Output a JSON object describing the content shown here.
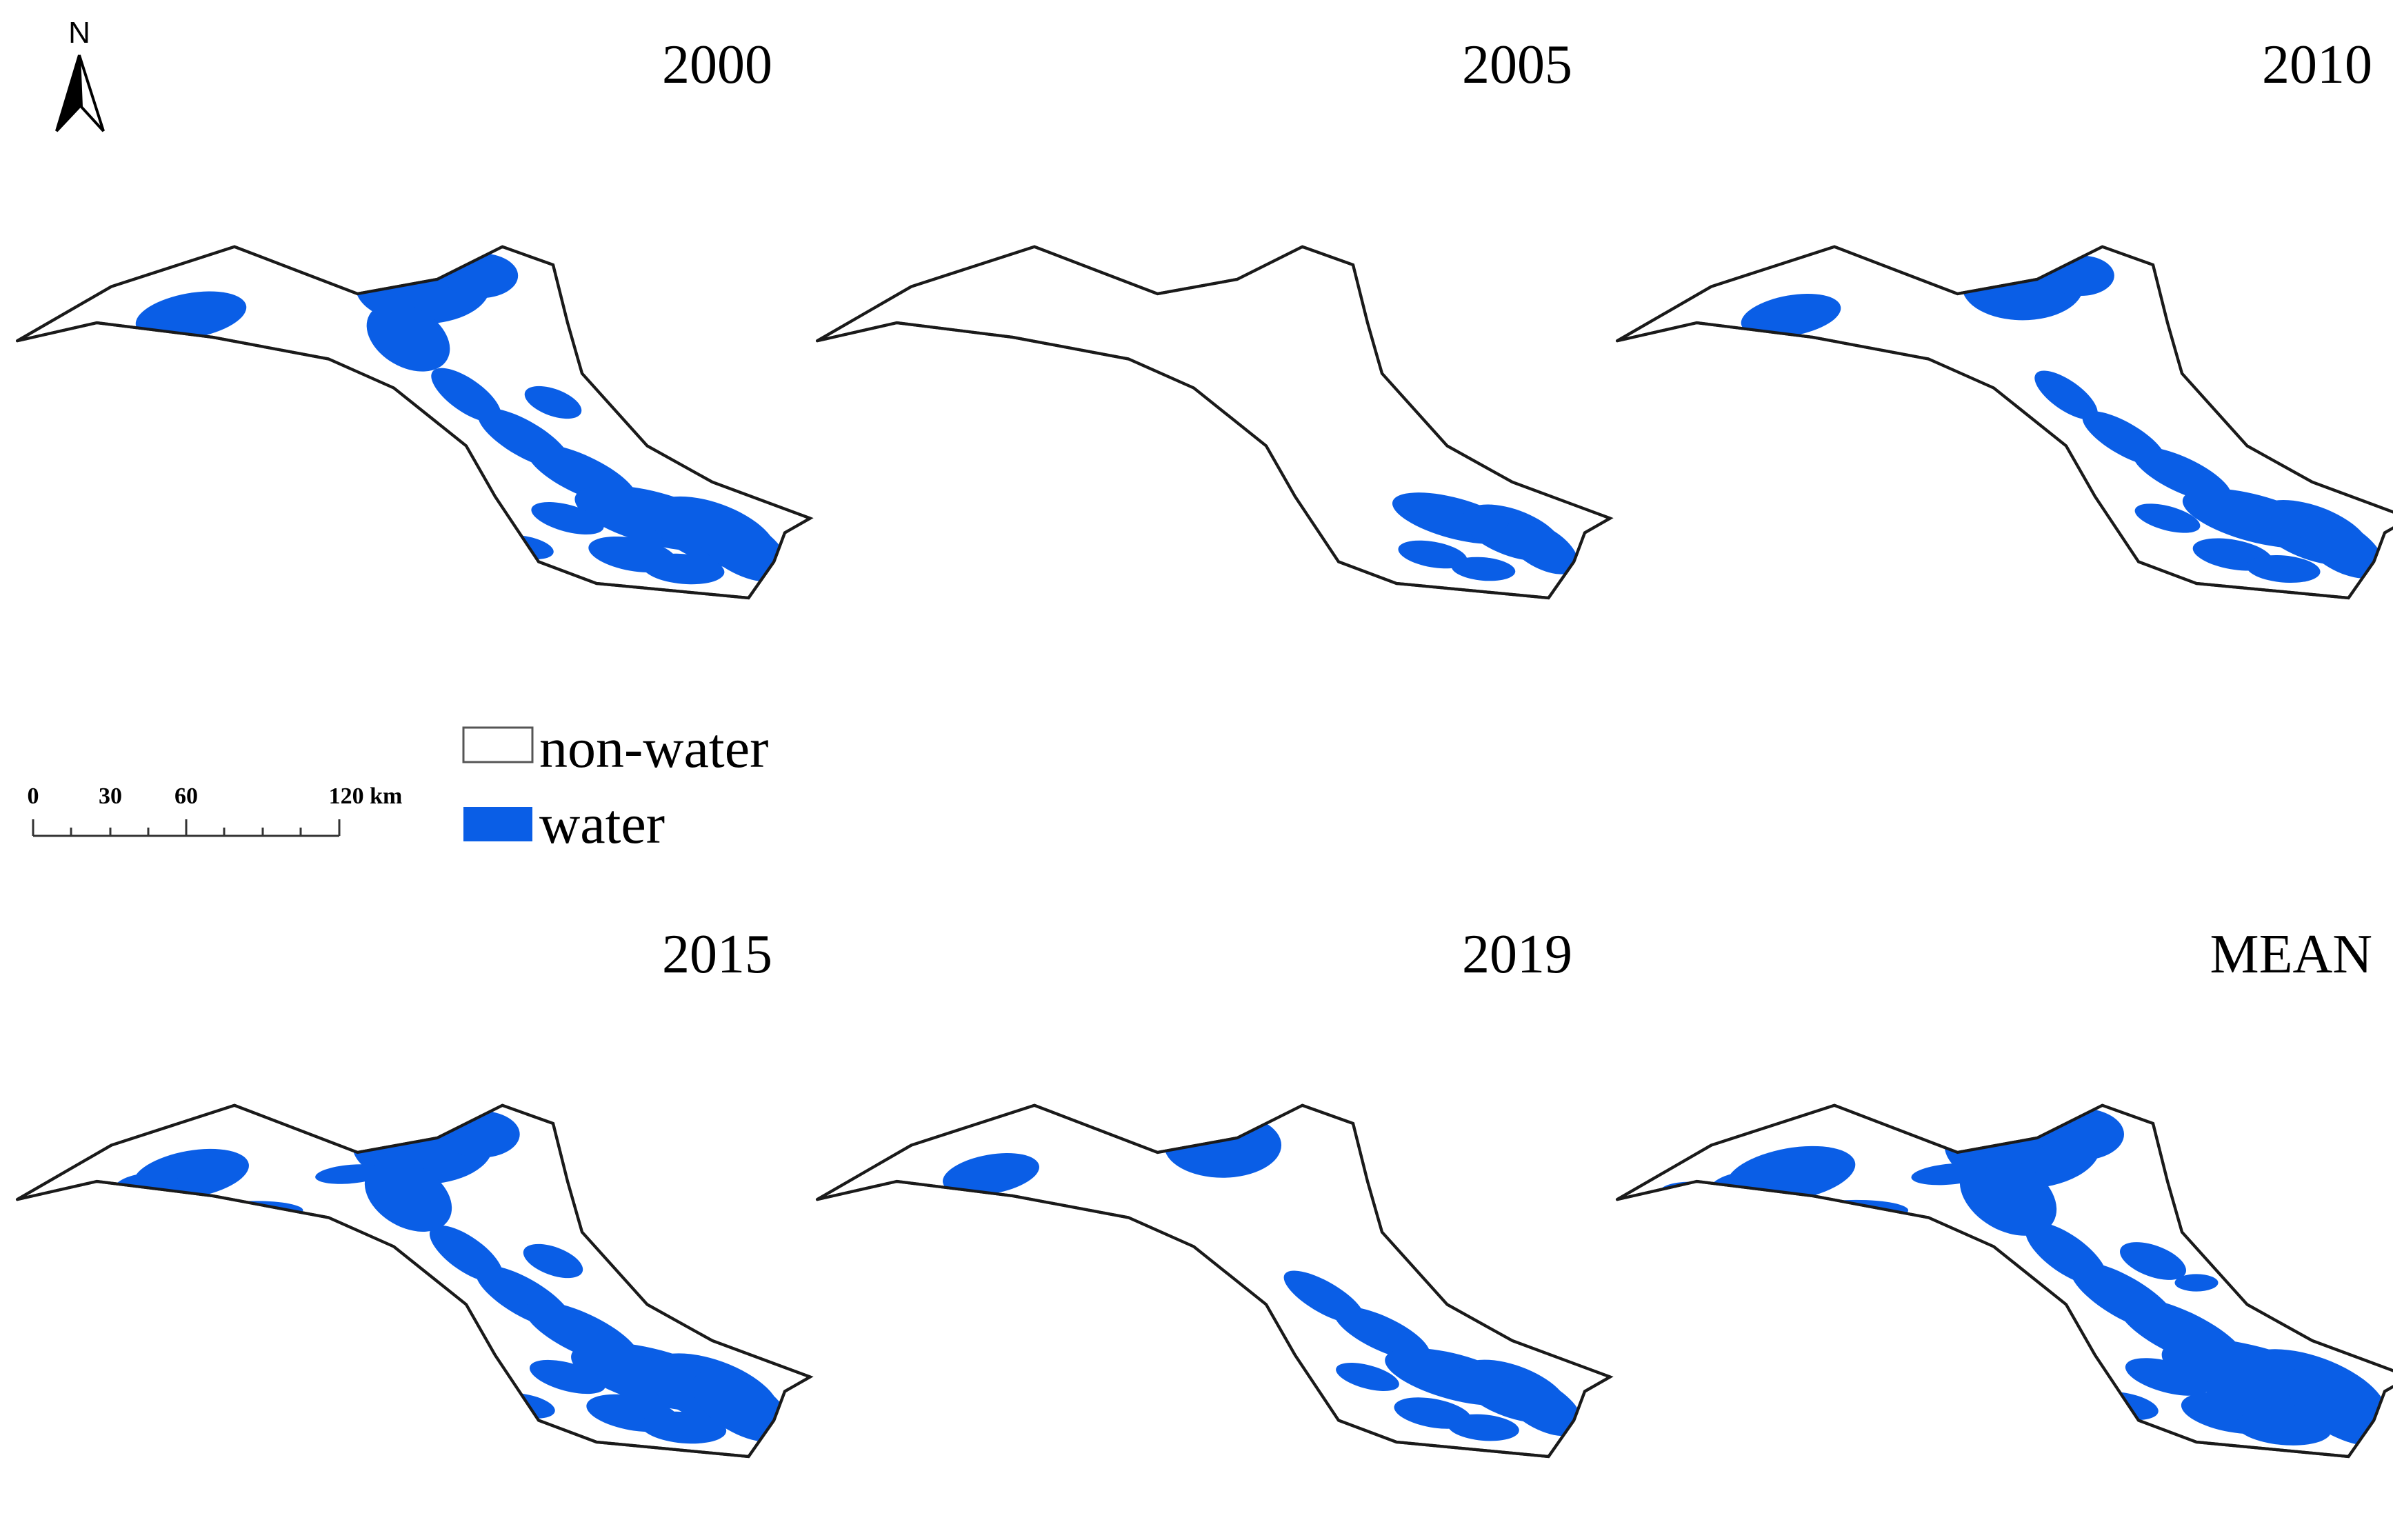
{
  "north_arrow": {
    "label": "N"
  },
  "panels": [
    {
      "title": "2000",
      "water_level": 0.72
    },
    {
      "title": "2005",
      "water_level": 0.34
    },
    {
      "title": "2010",
      "water_level": 0.55
    },
    {
      "title": "2015",
      "water_level": 0.8
    },
    {
      "title": "2019",
      "water_level": 0.5
    },
    {
      "title": "MEAN",
      "water_level": 1.0
    }
  ],
  "legend": {
    "items": [
      {
        "label": "non-water",
        "color": "#ffffff"
      },
      {
        "label": "water",
        "color": "#0a5ee6"
      }
    ]
  },
  "scale_bar": {
    "ticks": [
      "0",
      "30",
      "60",
      "120 km"
    ]
  },
  "colors": {
    "water": "#0a5ee6",
    "outline": "#1a1a1a"
  }
}
